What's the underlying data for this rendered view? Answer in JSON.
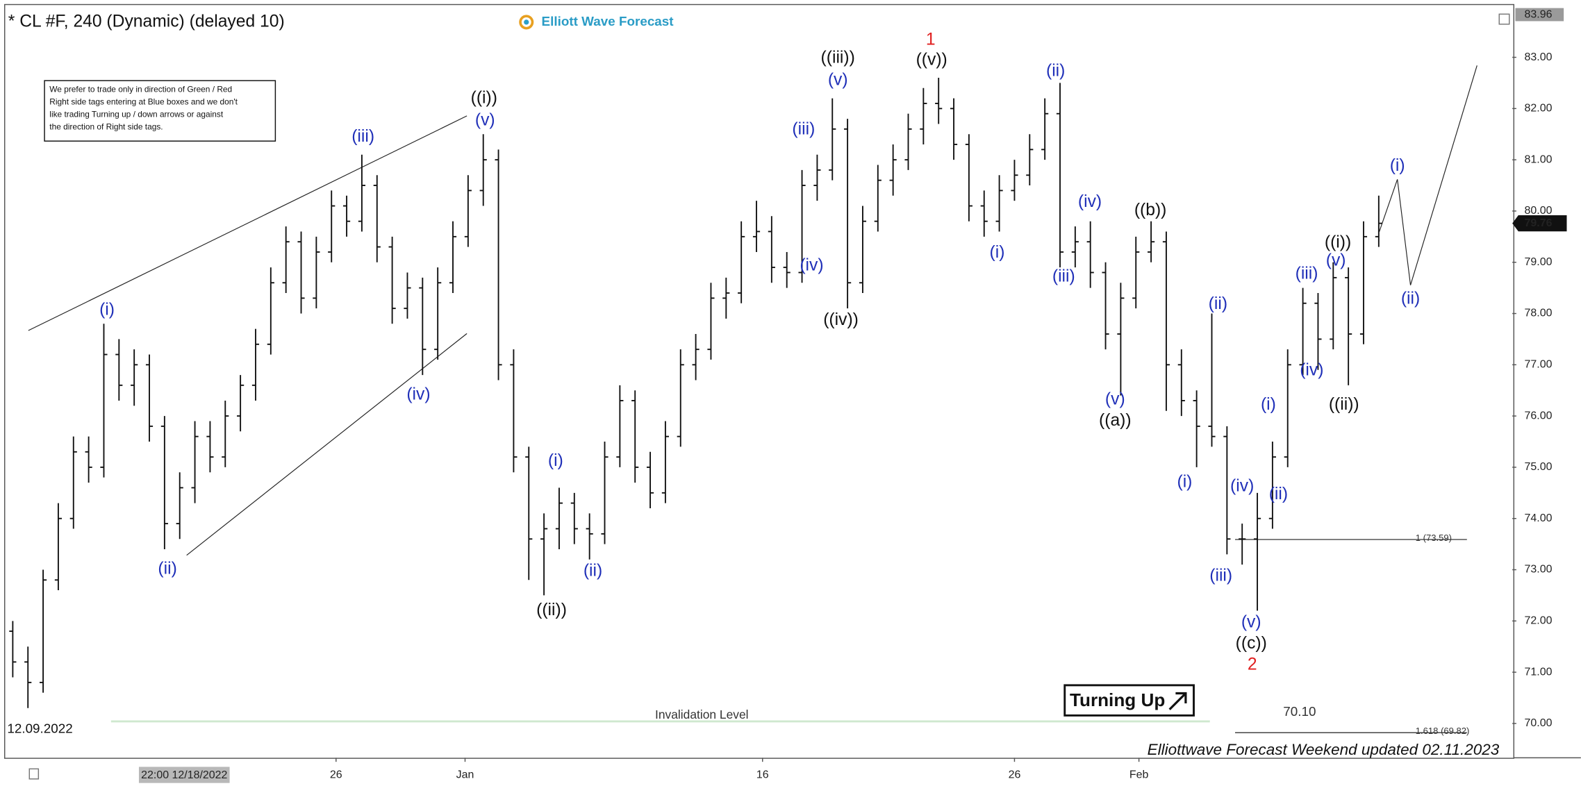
{
  "chart_data": {
    "type": "ohlc",
    "title": "* CL #F, 240 (Dynamic) (delayed 10)",
    "brand": "Elliott Wave Forecast",
    "note": [
      "We prefer to trade only in direction of Green / Red",
      "Right side tags entering at Blue boxes and we don't",
      "like trading Turning up / down arrows or against",
      "the direction of Right side tags."
    ],
    "start_date": "12.09.2022",
    "footer": "Elliottwave Forecast Weekend updated 02.11.2023",
    "badge": "Turning Up",
    "color": "#111111",
    "xlim": [
      -0.5,
      98.8
    ],
    "ylim": [
      69.33,
      84.02
    ],
    "yticks": [
      {
        "value": 70,
        "label": "70.00"
      },
      {
        "value": 71,
        "label": "71.00"
      },
      {
        "value": 72,
        "label": "72.00"
      },
      {
        "value": 73,
        "label": "73.00"
      },
      {
        "value": 74,
        "label": "74.00"
      },
      {
        "value": 75,
        "label": "75.00"
      },
      {
        "value": 76,
        "label": "76.00"
      },
      {
        "value": 77,
        "label": "77.00"
      },
      {
        "value": 78,
        "label": "78.00"
      },
      {
        "value": 79,
        "label": "79.00"
      },
      {
        "value": 80,
        "label": "80.00"
      },
      {
        "value": 81,
        "label": "81.00"
      },
      {
        "value": 82,
        "label": "82.00"
      },
      {
        "value": 83,
        "label": "83.00"
      }
    ],
    "xticks": [
      {
        "value": 21.3,
        "label": "26"
      },
      {
        "value": 29.8,
        "label": "Jan"
      },
      {
        "value": 49.4,
        "label": "16"
      },
      {
        "value": 66,
        "label": "26"
      },
      {
        "value": 74.2,
        "label": "Feb"
      }
    ],
    "cursor": {
      "value": 11.3,
      "label": "22:00 12/18/2022"
    },
    "price_labels": {
      "top": 83.96,
      "last": 79.76
    },
    "levels": [
      {
        "value": 73.59,
        "label": "1 (73.59)"
      },
      {
        "value": 69.82,
        "label": "1.618 (69.82)"
      }
    ],
    "invalidation": {
      "value": 70.1,
      "label": "70.10",
      "text": "Invalidation Level"
    },
    "open": [
      71.8,
      71.2,
      70.8,
      72.8,
      74.0,
      75.3,
      75.0,
      77.2,
      76.6,
      77.0,
      75.8,
      73.9,
      74.6,
      75.6,
      75.2,
      76.0,
      76.6,
      77.4,
      78.6,
      79.4,
      78.3,
      79.2,
      80.1,
      79.8,
      80.5,
      79.3,
      78.1,
      78.5,
      77.3,
      78.6,
      79.5,
      80.4,
      81.0,
      77.0,
      75.2,
      73.6,
      73.8,
      74.3,
      73.8,
      73.7,
      75.2,
      76.3,
      75.0,
      74.5,
      75.6,
      77.0,
      77.3,
      78.3,
      78.4,
      79.5,
      79.6,
      78.9,
      78.8,
      80.5,
      80.8,
      81.6,
      78.6,
      79.8,
      80.6,
      81.0,
      81.6,
      82.1,
      82.0,
      81.3,
      80.1,
      79.8,
      80.4,
      80.7,
      81.2,
      81.9,
      79.2,
      79.4,
      78.8,
      77.6,
      78.3,
      79.2,
      79.4,
      77.0,
      76.3,
      75.8,
      75.6,
      73.6,
      73.6,
      74.0,
      75.2,
      77.0,
      78.2,
      77.5,
      78.7,
      77.6,
      79.5
    ],
    "high": [
      72.0,
      71.5,
      73.0,
      74.3,
      75.6,
      75.6,
      77.8,
      77.5,
      77.3,
      77.2,
      76.0,
      74.9,
      75.9,
      75.9,
      76.3,
      76.8,
      77.7,
      78.9,
      79.7,
      79.6,
      79.5,
      80.4,
      80.3,
      81.1,
      80.7,
      79.5,
      78.8,
      78.7,
      78.9,
      79.8,
      80.7,
      81.5,
      81.2,
      77.3,
      75.4,
      74.1,
      74.6,
      74.5,
      74.1,
      75.5,
      76.6,
      76.5,
      75.3,
      75.9,
      77.3,
      77.6,
      78.6,
      78.7,
      79.8,
      80.2,
      79.9,
      79.2,
      80.8,
      81.1,
      82.2,
      81.8,
      80.1,
      80.9,
      81.3,
      81.9,
      82.4,
      82.6,
      82.2,
      81.5,
      80.4,
      80.7,
      81.0,
      81.5,
      82.2,
      82.5,
      79.7,
      79.8,
      79.0,
      78.6,
      79.5,
      79.8,
      79.6,
      77.3,
      76.5,
      78.0,
      75.8,
      73.9,
      74.5,
      75.5,
      77.3,
      78.5,
      78.4,
      79.0,
      78.9,
      79.8,
      80.3
    ],
    "low": [
      70.9,
      70.3,
      70.6,
      72.6,
      73.8,
      74.7,
      74.8,
      76.3,
      76.2,
      75.5,
      73.4,
      73.6,
      74.3,
      74.9,
      75.0,
      75.7,
      76.3,
      77.2,
      78.4,
      78.0,
      78.1,
      79.0,
      79.5,
      79.6,
      79.0,
      77.8,
      77.9,
      76.8,
      77.1,
      78.4,
      79.3,
      80.1,
      76.7,
      74.9,
      72.8,
      72.5,
      73.4,
      73.5,
      73.2,
      73.5,
      75.0,
      74.7,
      74.2,
      74.3,
      75.4,
      76.7,
      77.1,
      77.9,
      78.2,
      79.2,
      78.6,
      78.5,
      78.6,
      80.2,
      80.6,
      78.1,
      78.4,
      79.6,
      80.3,
      80.8,
      81.3,
      81.7,
      81.0,
      79.8,
      79.5,
      79.6,
      80.2,
      80.5,
      81.0,
      78.9,
      78.9,
      78.5,
      77.3,
      76.4,
      78.1,
      79.0,
      76.1,
      76.0,
      75.0,
      75.4,
      73.3,
      73.1,
      72.2,
      73.8,
      75.0,
      76.8,
      76.9,
      77.3,
      76.6,
      77.4,
      79.3
    ],
    "close": [
      71.2,
      70.8,
      72.8,
      74.0,
      75.3,
      75.0,
      77.2,
      76.6,
      77.0,
      75.8,
      73.9,
      74.6,
      75.6,
      75.2,
      76.0,
      76.6,
      77.4,
      78.6,
      79.4,
      78.3,
      79.2,
      80.1,
      79.8,
      80.5,
      79.3,
      78.1,
      78.5,
      77.3,
      78.6,
      79.5,
      80.4,
      81.0,
      77.0,
      75.2,
      73.6,
      73.8,
      74.3,
      73.8,
      73.7,
      75.2,
      76.3,
      75.0,
      74.5,
      75.6,
      77.0,
      77.3,
      78.3,
      78.4,
      79.5,
      79.6,
      78.9,
      78.8,
      80.5,
      80.8,
      81.6,
      78.6,
      79.8,
      80.6,
      81.0,
      81.6,
      82.1,
      82.0,
      81.3,
      80.1,
      79.8,
      80.4,
      80.7,
      81.2,
      81.9,
      79.2,
      79.4,
      78.8,
      77.6,
      78.3,
      79.2,
      79.4,
      77.0,
      76.3,
      75.8,
      75.6,
      73.6,
      73.6,
      74.0,
      75.2,
      77.0,
      78.2,
      77.5,
      78.7,
      77.6,
      79.5,
      79.76
    ],
    "annotations": [
      {
        "text": "(i)",
        "color": "#1f2fb8"
      },
      {
        "text": "(ii)",
        "color": "#1f2fb8"
      },
      {
        "text": "(iii)",
        "color": "#1f2fb8"
      },
      {
        "text": "(iv)",
        "color": "#1f2fb8"
      },
      {
        "text": "(v)",
        "color": "#1f2fb8"
      },
      {
        "text": "(i)",
        "color": "#1f2fb8"
      },
      {
        "text": "(ii)",
        "color": "#1f2fb8"
      },
      {
        "text": "(iii)",
        "color": "#1f2fb8"
      },
      {
        "text": "(iv)",
        "color": "#1f2fb8"
      },
      {
        "text": "(v)",
        "color": "#1f2fb8"
      },
      {
        "text": "(i)",
        "color": "#1f2fb8"
      },
      {
        "text": "(ii)",
        "color": "#1f2fb8"
      },
      {
        "text": "(iv)",
        "color": "#1f2fb8"
      },
      {
        "text": "(iii)",
        "color": "#1f2fb8"
      },
      {
        "text": "(v)",
        "color": "#1f2fb8"
      },
      {
        "text": "(i)",
        "color": "#1f2fb8"
      },
      {
        "text": "(ii)",
        "color": "#1f2fb8"
      },
      {
        "text": "(iii)",
        "color": "#1f2fb8"
      },
      {
        "text": "(iv)",
        "color": "#1f2fb8"
      },
      {
        "text": "(v)",
        "color": "#1f2fb8"
      },
      {
        "text": "(i)",
        "color": "#1f2fb8"
      },
      {
        "text": "(ii)",
        "color": "#1f2fb8"
      },
      {
        "text": "(iii)",
        "color": "#1f2fb8"
      },
      {
        "text": "(iv)",
        "color": "#1f2fb8"
      },
      {
        "text": "(v)",
        "color": "#1f2fb8"
      },
      {
        "text": "(i)",
        "color": "#1f2fb8"
      },
      {
        "text": "(ii)",
        "color": "#1f2fb8"
      },
      {
        "text": "((i))",
        "color": "#111111"
      },
      {
        "text": "((ii))",
        "color": "#111111"
      },
      {
        "text": "((iii))",
        "color": "#111111"
      },
      {
        "text": "((iv))",
        "color": "#111111"
      },
      {
        "text": "((v))",
        "color": "#111111"
      },
      {
        "text": "((a))",
        "color": "#111111"
      },
      {
        "text": "((b))",
        "color": "#111111"
      },
      {
        "text": "((c))",
        "color": "#111111"
      },
      {
        "text": "((i))",
        "color": "#111111"
      },
      {
        "text": "((ii))",
        "color": "#111111"
      },
      {
        "text": "1",
        "color": "#e02020"
      },
      {
        "text": "2",
        "color": "#e02020"
      }
    ]
  }
}
